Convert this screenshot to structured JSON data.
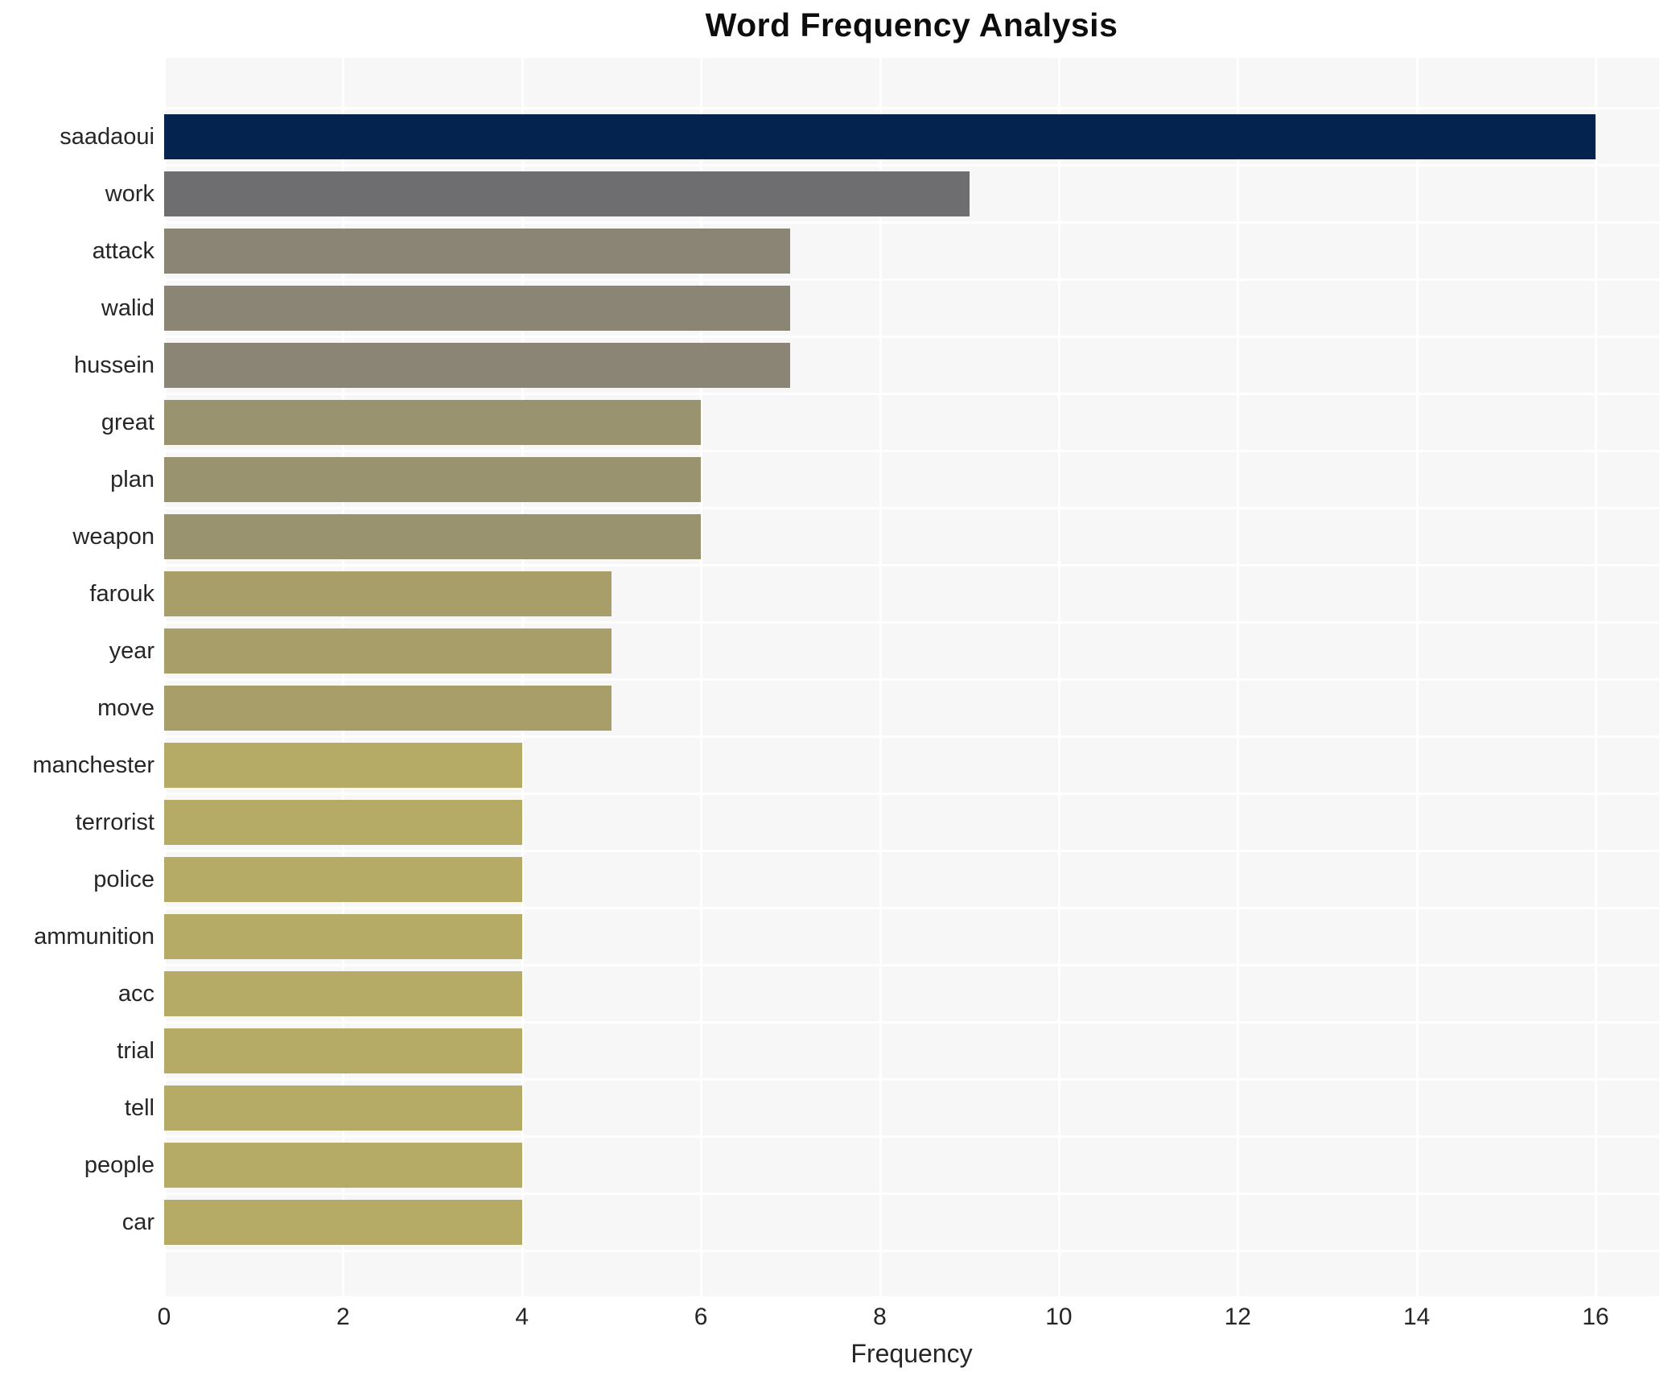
{
  "title": "Word Frequency Analysis",
  "chart_data": {
    "type": "bar",
    "orientation": "horizontal",
    "title": "Word Frequency Analysis",
    "xlabel": "Frequency",
    "ylabel": "",
    "categories": [
      "saadaoui",
      "work",
      "attack",
      "walid",
      "hussein",
      "great",
      "plan",
      "weapon",
      "farouk",
      "year",
      "move",
      "manchester",
      "terrorist",
      "police",
      "ammunition",
      "acc",
      "trial",
      "tell",
      "people",
      "car"
    ],
    "values": [
      16,
      9,
      7,
      7,
      7,
      6,
      6,
      6,
      5,
      5,
      5,
      4,
      4,
      4,
      4,
      4,
      4,
      4,
      4,
      4
    ],
    "bar_colors": [
      "#04234e",
      "#6e6e70",
      "#8b8576",
      "#8b8576",
      "#8b8576",
      "#9a9370",
      "#9a9370",
      "#9a9370",
      "#a89e6a",
      "#a89e6a",
      "#a89e6a",
      "#b5aa66",
      "#b5aa66",
      "#b5aa66",
      "#b5aa66",
      "#b5aa66",
      "#b5aa66",
      "#b5aa66",
      "#b5aa66",
      "#b5aa66"
    ],
    "x_ticks": [
      0,
      2,
      4,
      6,
      8,
      10,
      12,
      14,
      16
    ],
    "xlim": [
      0,
      16.71
    ],
    "grid": true,
    "legend": "none",
    "plot_bg_color": "#f7f7f8",
    "grid_color": "#ffffff",
    "text_color": "#262626",
    "title_color": "#0d0d0d"
  }
}
